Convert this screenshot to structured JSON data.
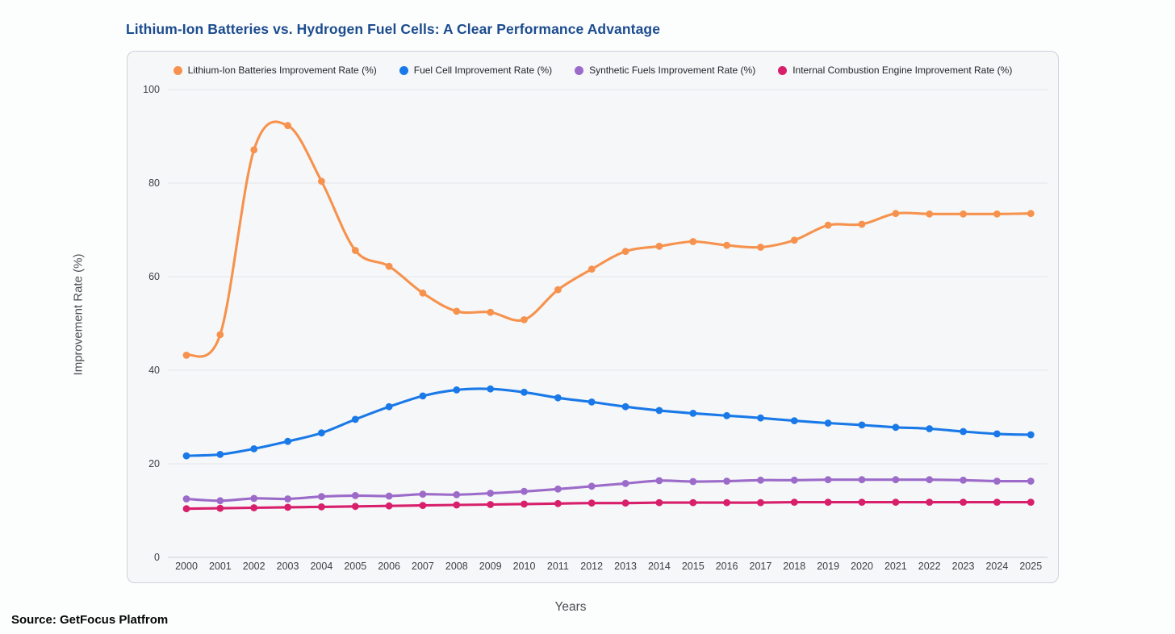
{
  "page": {
    "title": "Lithium-Ion Batteries vs. Hydrogen Fuel Cells: A Clear Performance Advantage",
    "title_color": "#1b4c8f",
    "source": "Source: GetFocus Platfrom"
  },
  "chart_data": {
    "type": "line",
    "title": "Lithium-Ion Batteries vs. Hydrogen Fuel Cells: A Clear Performance Advantage",
    "xlabel": "Years",
    "ylabel": "Improvement Rate (%)",
    "x": [
      2000,
      2001,
      2002,
      2003,
      2004,
      2005,
      2006,
      2007,
      2008,
      2009,
      2010,
      2011,
      2012,
      2013,
      2014,
      2015,
      2016,
      2017,
      2018,
      2019,
      2020,
      2021,
      2022,
      2023,
      2024,
      2025
    ],
    "ylim": [
      0,
      100
    ],
    "yticks": [
      0,
      20,
      40,
      60,
      80,
      100
    ],
    "grid": true,
    "legend_position": "top",
    "marker": "circle",
    "smooth": true,
    "axis_colors": {
      "gridline": "#e3e6ea",
      "zero_line": "#c9ced4"
    },
    "series": [
      {
        "name": "Lithium-Ion Batteries Improvement Rate (%)",
        "color": "#f6924d",
        "values": [
          43.2,
          47.6,
          87.1,
          92.3,
          80.4,
          65.6,
          62.2,
          56.5,
          52.6,
          52.4,
          50.8,
          57.2,
          61.6,
          65.4,
          66.5,
          67.5,
          66.7,
          66.3,
          67.8,
          71.0,
          71.2,
          73.5,
          73.4,
          73.4,
          73.4,
          73.5
        ]
      },
      {
        "name": "Fuel Cell Improvement Rate (%)",
        "color": "#1a79e8",
        "values": [
          21.7,
          22.0,
          23.2,
          24.8,
          26.6,
          29.5,
          32.2,
          34.5,
          35.8,
          36.0,
          35.3,
          34.1,
          33.2,
          32.2,
          31.4,
          30.8,
          30.3,
          29.8,
          29.2,
          28.7,
          28.3,
          27.8,
          27.5,
          26.9,
          26.4,
          26.2
        ]
      },
      {
        "name": "Synthetic Fuels Improvement Rate (%)",
        "color": "#9c6bca",
        "values": [
          12.5,
          12.1,
          12.6,
          12.5,
          13.0,
          13.2,
          13.1,
          13.5,
          13.4,
          13.7,
          14.1,
          14.6,
          15.2,
          15.8,
          16.4,
          16.2,
          16.3,
          16.5,
          16.5,
          16.6,
          16.6,
          16.6,
          16.6,
          16.5,
          16.3,
          16.3
        ]
      },
      {
        "name": "Internal Combustion Engine Improvement Rate (%)",
        "color": "#d81f6b",
        "values": [
          10.4,
          10.5,
          10.6,
          10.7,
          10.8,
          10.9,
          11.0,
          11.1,
          11.2,
          11.3,
          11.4,
          11.5,
          11.6,
          11.6,
          11.7,
          11.7,
          11.7,
          11.7,
          11.8,
          11.8,
          11.8,
          11.8,
          11.8,
          11.8,
          11.8,
          11.8
        ]
      }
    ]
  }
}
